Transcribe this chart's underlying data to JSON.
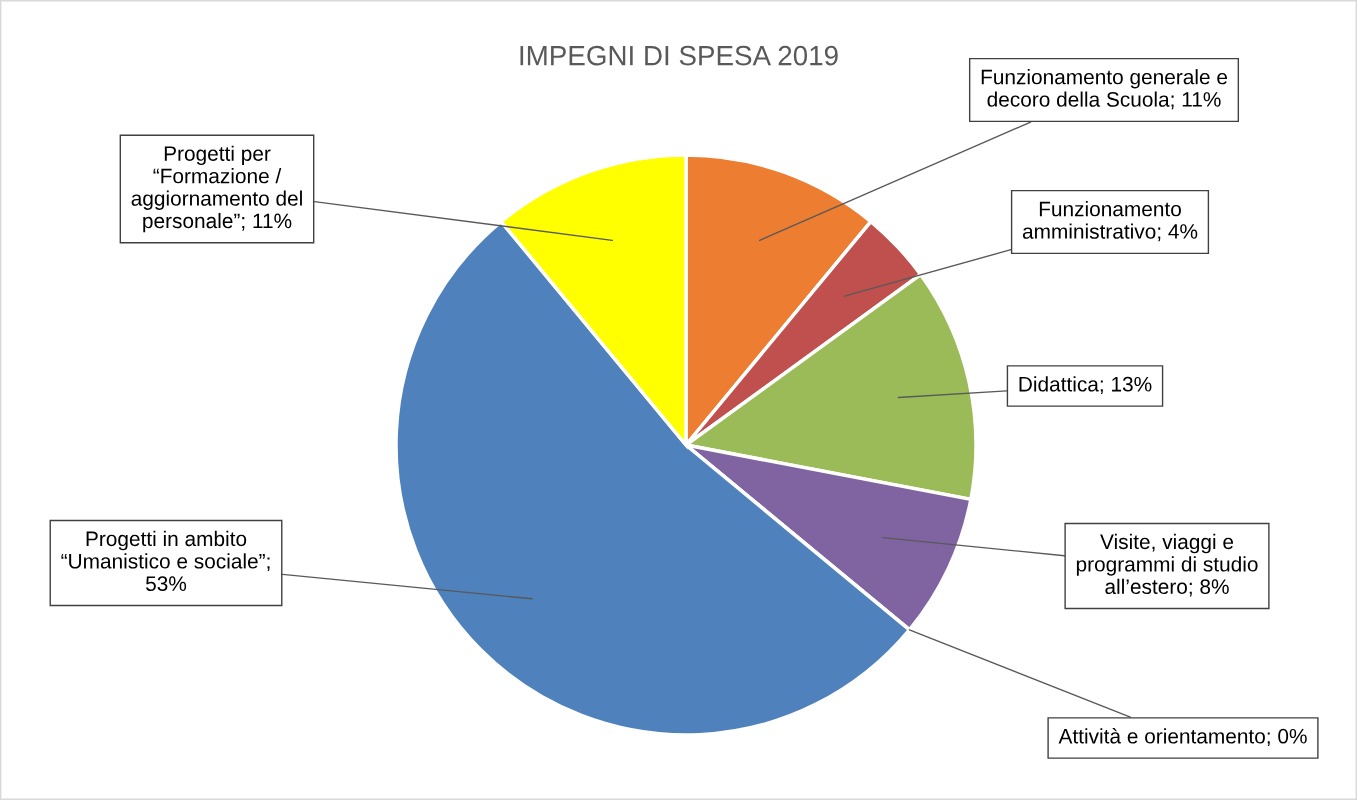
{
  "chart_data": {
    "type": "pie",
    "title": "IMPEGNI DI SPESA 2019",
    "categories": [
      "Funzionamento generale e decoro della Scuola; 11%",
      "Funzionamento amministrativo; 4%",
      "Didattica; 13%",
      "Visite, viaggi e programmi di studio all’estero; 8%",
      "Attività e orientamento; 0%",
      "Progetti in ambito “Umanistico e sociale”; 53%",
      "Progetti per “Formazione / aggiornamento del personale”; 11%"
    ],
    "values": [
      11,
      4,
      13,
      8,
      0,
      53,
      11
    ],
    "colors": [
      "#ed7d31",
      "#c0504d",
      "#9bbb59",
      "#8064a2",
      "#4bacc6",
      "#4f81bd",
      "#ffff00"
    ],
    "legend": false
  }
}
